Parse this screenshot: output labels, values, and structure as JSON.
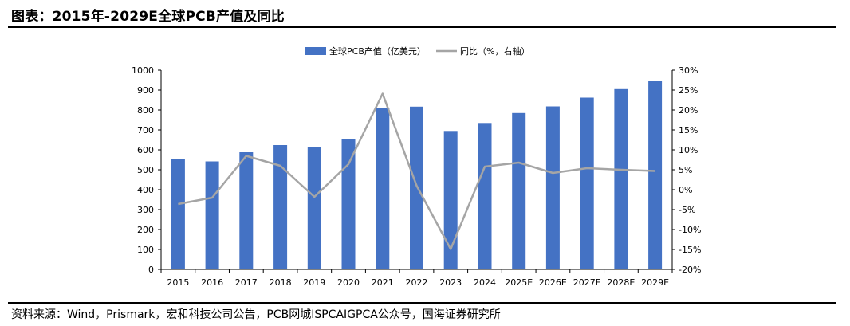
{
  "header": {
    "title": "图表：2015年-2029E全球PCB产值及同比"
  },
  "footer": {
    "source": "资料来源：Wind，Prismark，宏和科技公司公告，PCB网城ISPCAIGPCA公众号，国海证券研究所"
  },
  "colors": {
    "bar": "#4472C4",
    "line": "#A5A5A5",
    "axis": "#000000"
  },
  "chart_data": {
    "type": "bar",
    "categories": [
      "2015",
      "2016",
      "2017",
      "2018",
      "2019",
      "2020",
      "2021",
      "2022",
      "2023",
      "2024",
      "2025E",
      "2026E",
      "2027E",
      "2028E",
      "2029E"
    ],
    "series": [
      {
        "name": "全球PCB产值（亿美元）",
        "type": "bar",
        "axis": "left",
        "values": [
          553,
          542,
          588,
          624,
          613,
          652,
          809,
          817,
          695,
          735,
          785,
          818,
          862,
          905,
          947
        ]
      },
      {
        "name": "同比（%，右轴）",
        "type": "line",
        "axis": "right",
        "values": [
          -3.6,
          -2.0,
          8.5,
          6.0,
          -1.8,
          6.4,
          24.1,
          1.0,
          -14.9,
          5.8,
          6.8,
          4.2,
          5.4,
          5.0,
          4.7
        ]
      }
    ],
    "y_left": {
      "ylim": [
        0,
        1000
      ],
      "ticks": [
        "0",
        "100",
        "200",
        "300",
        "400",
        "500",
        "600",
        "700",
        "800",
        "900",
        "1000"
      ]
    },
    "y_right": {
      "ylim": [
        -20,
        30
      ],
      "ticks": [
        "-20%",
        "-15%",
        "-10%",
        "-5%",
        "0%",
        "5%",
        "10%",
        "15%",
        "20%",
        "25%",
        "30%"
      ]
    },
    "legend": "top-center",
    "grid": false
  }
}
